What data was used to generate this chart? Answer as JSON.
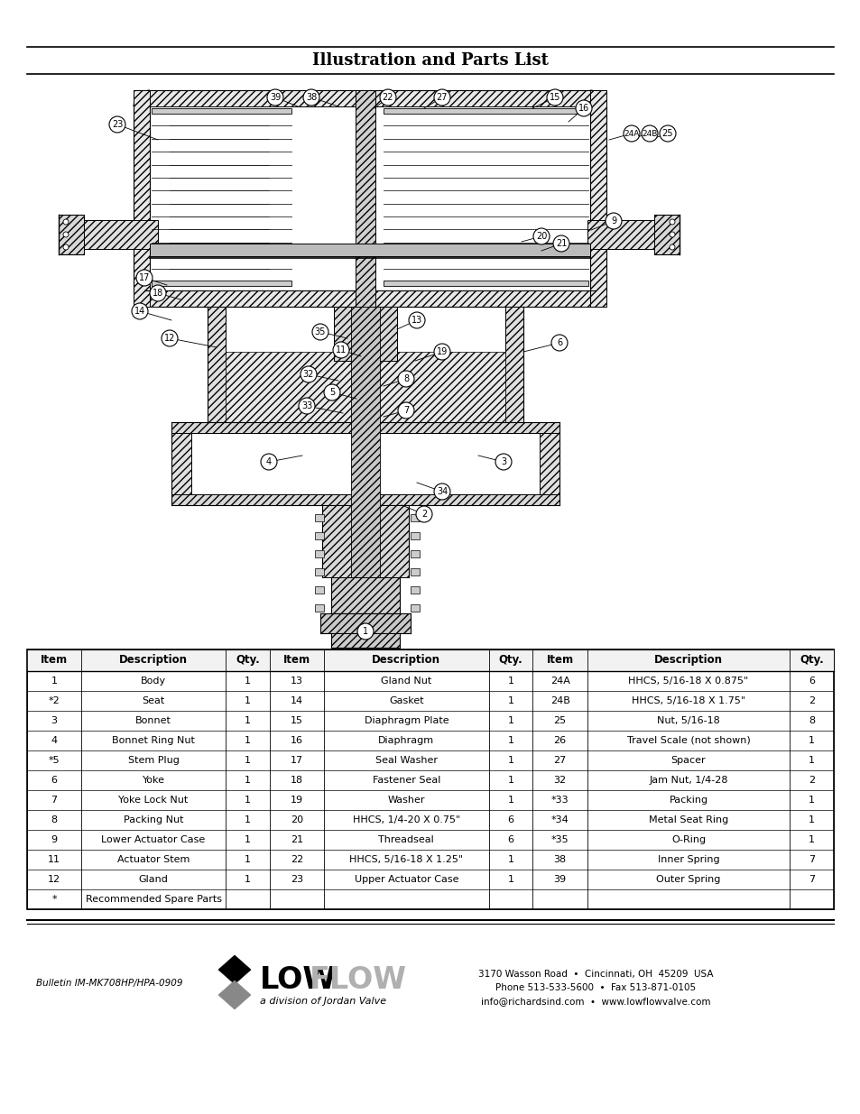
{
  "title": "Illustration and Parts List",
  "title_fontsize": 13,
  "background_color": "#ffffff",
  "table_header": [
    "Item",
    "Description",
    "Qty.",
    "Item",
    "Description",
    "Qty.",
    "Item",
    "Description",
    "Qty."
  ],
  "table_rows": [
    [
      "1",
      "Body",
      "1",
      "13",
      "Gland Nut",
      "1",
      "24A",
      "HHCS, 5/16-18 X 0.875\"",
      "6"
    ],
    [
      "*2",
      "Seat",
      "1",
      "14",
      "Gasket",
      "1",
      "24B",
      "HHCS, 5/16-18 X 1.75\"",
      "2"
    ],
    [
      "3",
      "Bonnet",
      "1",
      "15",
      "Diaphragm Plate",
      "1",
      "25",
      "Nut, 5/16-18",
      "8"
    ],
    [
      "4",
      "Bonnet Ring Nut",
      "1",
      "16",
      "Diaphragm",
      "1",
      "26",
      "Travel Scale (not shown)",
      "1"
    ],
    [
      "*5",
      "Stem Plug",
      "1",
      "17",
      "Seal Washer",
      "1",
      "27",
      "Spacer",
      "1"
    ],
    [
      "6",
      "Yoke",
      "1",
      "18",
      "Fastener Seal",
      "1",
      "32",
      "Jam Nut, 1/4-28",
      "2"
    ],
    [
      "7",
      "Yoke Lock Nut",
      "1",
      "19",
      "Washer",
      "1",
      "*33",
      "Packing",
      "1"
    ],
    [
      "8",
      "Packing Nut",
      "1",
      "20",
      "HHCS, 1/4-20 X 0.75\"",
      "6",
      "*34",
      "Metal Seat Ring",
      "1"
    ],
    [
      "9",
      "Lower Actuator Case",
      "1",
      "21",
      "Threadseal",
      "6",
      "*35",
      "O-Ring",
      "1"
    ],
    [
      "11",
      "Actuator Stem",
      "1",
      "22",
      "HHCS, 5/16-18 X 1.25\"",
      "1",
      "38",
      "Inner Spring",
      "7"
    ],
    [
      "12",
      "Gland",
      "1",
      "23",
      "Upper Actuator Case",
      "1",
      "39",
      "Outer Spring",
      "7"
    ],
    [
      "*",
      "Recommended Spare Parts",
      "",
      "",
      "",
      "",
      "",
      "",
      ""
    ]
  ],
  "footer_bulletin": "Bulletin IM-MK708HP/HPA-0909",
  "footer_address_line1": "3170 Wasson Road  •  Cincinnati, OH  45209  USA",
  "footer_address_line2": "Phone 513-533-5600  •  Fax 513-871-0105",
  "footer_address_line3": "info@richardsind.com  •  www.lowflowvalve.com",
  "logo_subtitle": "a division of Jordan Valve",
  "col_props": [
    0.052,
    0.138,
    0.042,
    0.052,
    0.158,
    0.042,
    0.052,
    0.194,
    0.042
  ]
}
